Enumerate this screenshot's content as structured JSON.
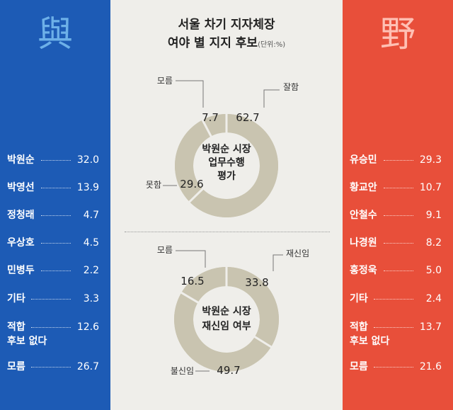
{
  "title": {
    "line1": "서울 차기 지자체장",
    "line2": "여야 별 지지 후보",
    "unit": "(단위:%)"
  },
  "left_panel": {
    "hanja": "與",
    "candidates": [
      {
        "name": "박원순",
        "value": "32.0"
      },
      {
        "name": "박영선",
        "value": "13.9"
      },
      {
        "name": "정청래",
        "value": "4.7"
      },
      {
        "name": "우상호",
        "value": "4.5"
      },
      {
        "name": "민병두",
        "value": "2.2"
      },
      {
        "name": "기타",
        "value": "3.3"
      },
      {
        "name": "적합",
        "name2": "후보 없다",
        "value": "12.6"
      },
      {
        "name": "모름",
        "value": "26.7"
      }
    ]
  },
  "right_panel": {
    "hanja": "野",
    "candidates": [
      {
        "name": "유승민",
        "value": "29.3"
      },
      {
        "name": "황교안",
        "value": "10.7"
      },
      {
        "name": "안철수",
        "value": "9.1"
      },
      {
        "name": "나경원",
        "value": "8.2"
      },
      {
        "name": "홍정욱",
        "value": "5.0"
      },
      {
        "name": "기타",
        "value": "2.4"
      },
      {
        "name": "적합",
        "name2": "후보 없다",
        "value": "13.7"
      },
      {
        "name": "모름",
        "value": "21.6"
      }
    ]
  },
  "colors": {
    "left": "#1d5bb5",
    "right": "#e84f3a",
    "ring": "#c9c4b0",
    "background": "#efeeea"
  },
  "chart_data": [
    {
      "type": "pie",
      "donut": true,
      "title": "박원순 시장 업무수행 평가",
      "categories": [
        "잘함",
        "못함",
        "모름"
      ],
      "values": [
        62.7,
        29.6,
        7.7
      ]
    },
    {
      "type": "pie",
      "donut": true,
      "title": "박원순 시장 재신임 여부",
      "categories": [
        "재신임",
        "불신임",
        "모름"
      ],
      "values": [
        33.8,
        49.7,
        16.5
      ]
    },
    {
      "type": "bar",
      "orientation": "horizontal",
      "title": "與",
      "categories": [
        "박원순",
        "박영선",
        "정청래",
        "우상호",
        "민병두",
        "기타",
        "적합 후보 없다",
        "모름"
      ],
      "values": [
        32.0,
        13.9,
        4.7,
        4.5,
        2.2,
        3.3,
        12.6,
        26.7
      ]
    },
    {
      "type": "bar",
      "orientation": "horizontal",
      "title": "野",
      "categories": [
        "유승민",
        "황교안",
        "안철수",
        "나경원",
        "홍정욱",
        "기타",
        "적합 후보 없다",
        "모름"
      ],
      "values": [
        29.3,
        10.7,
        9.1,
        8.2,
        5.0,
        2.4,
        13.7,
        21.6
      ]
    }
  ]
}
